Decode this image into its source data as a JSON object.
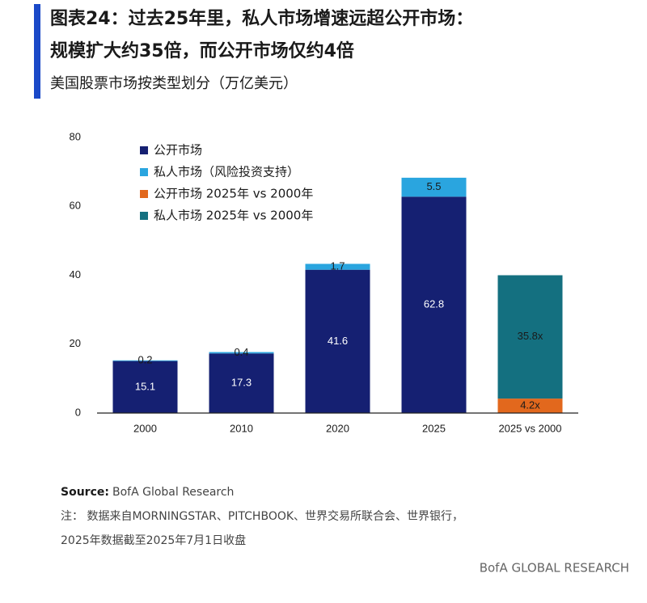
{
  "chart_data": {
    "type": "bar",
    "stacked": true,
    "title": [
      "图表24：过去25年里，私人市场增速远超公开市场：",
      "规模扩大约35倍，而公开市场仅约4倍"
    ],
    "subtitle": "美国股票市场按类型划分（万亿美元）",
    "categories": [
      "2000",
      "2010",
      "2020",
      "2025",
      "2025 vs 2000"
    ],
    "series": [
      {
        "name": "公开市场",
        "color": "#152072",
        "label_color": "#ffffff",
        "values": [
          15.1,
          17.3,
          41.6,
          62.8,
          null
        ]
      },
      {
        "name": "私人市场（风险投资支持）",
        "color": "#2aa5df",
        "label_color": "#1a1a1a",
        "values": [
          0.2,
          0.4,
          1.7,
          5.5,
          null
        ]
      },
      {
        "name": "公开市场 2025年 vs 2000年",
        "color": "#e2681d",
        "label_color": "#1a1a1a",
        "values": [
          null,
          null,
          null,
          null,
          4.2
        ],
        "value_labels": [
          null,
          null,
          null,
          null,
          "4.2x"
        ]
      },
      {
        "name": "私人市场 2025年 vs 2000年",
        "color": "#147080",
        "label_color": "#1a1a1a",
        "values": [
          null,
          null,
          null,
          null,
          35.8
        ],
        "value_labels": [
          null,
          null,
          null,
          null,
          "35.8x"
        ]
      }
    ],
    "ylim": [
      0,
      80
    ],
    "yticks": [
      0,
      20,
      40,
      60,
      80
    ],
    "grid": false,
    "legend": "top-left",
    "source_label": "Source:",
    "source": "BofA Global Research",
    "notes": [
      "注：  数据来自MORNINGSTAR、PITCHBOOK、世界交易所联合会、世界银行，",
      "2025年数据截至2025年7月1日收盘"
    ],
    "footer": "BofA GLOBAL RESEARCH"
  }
}
